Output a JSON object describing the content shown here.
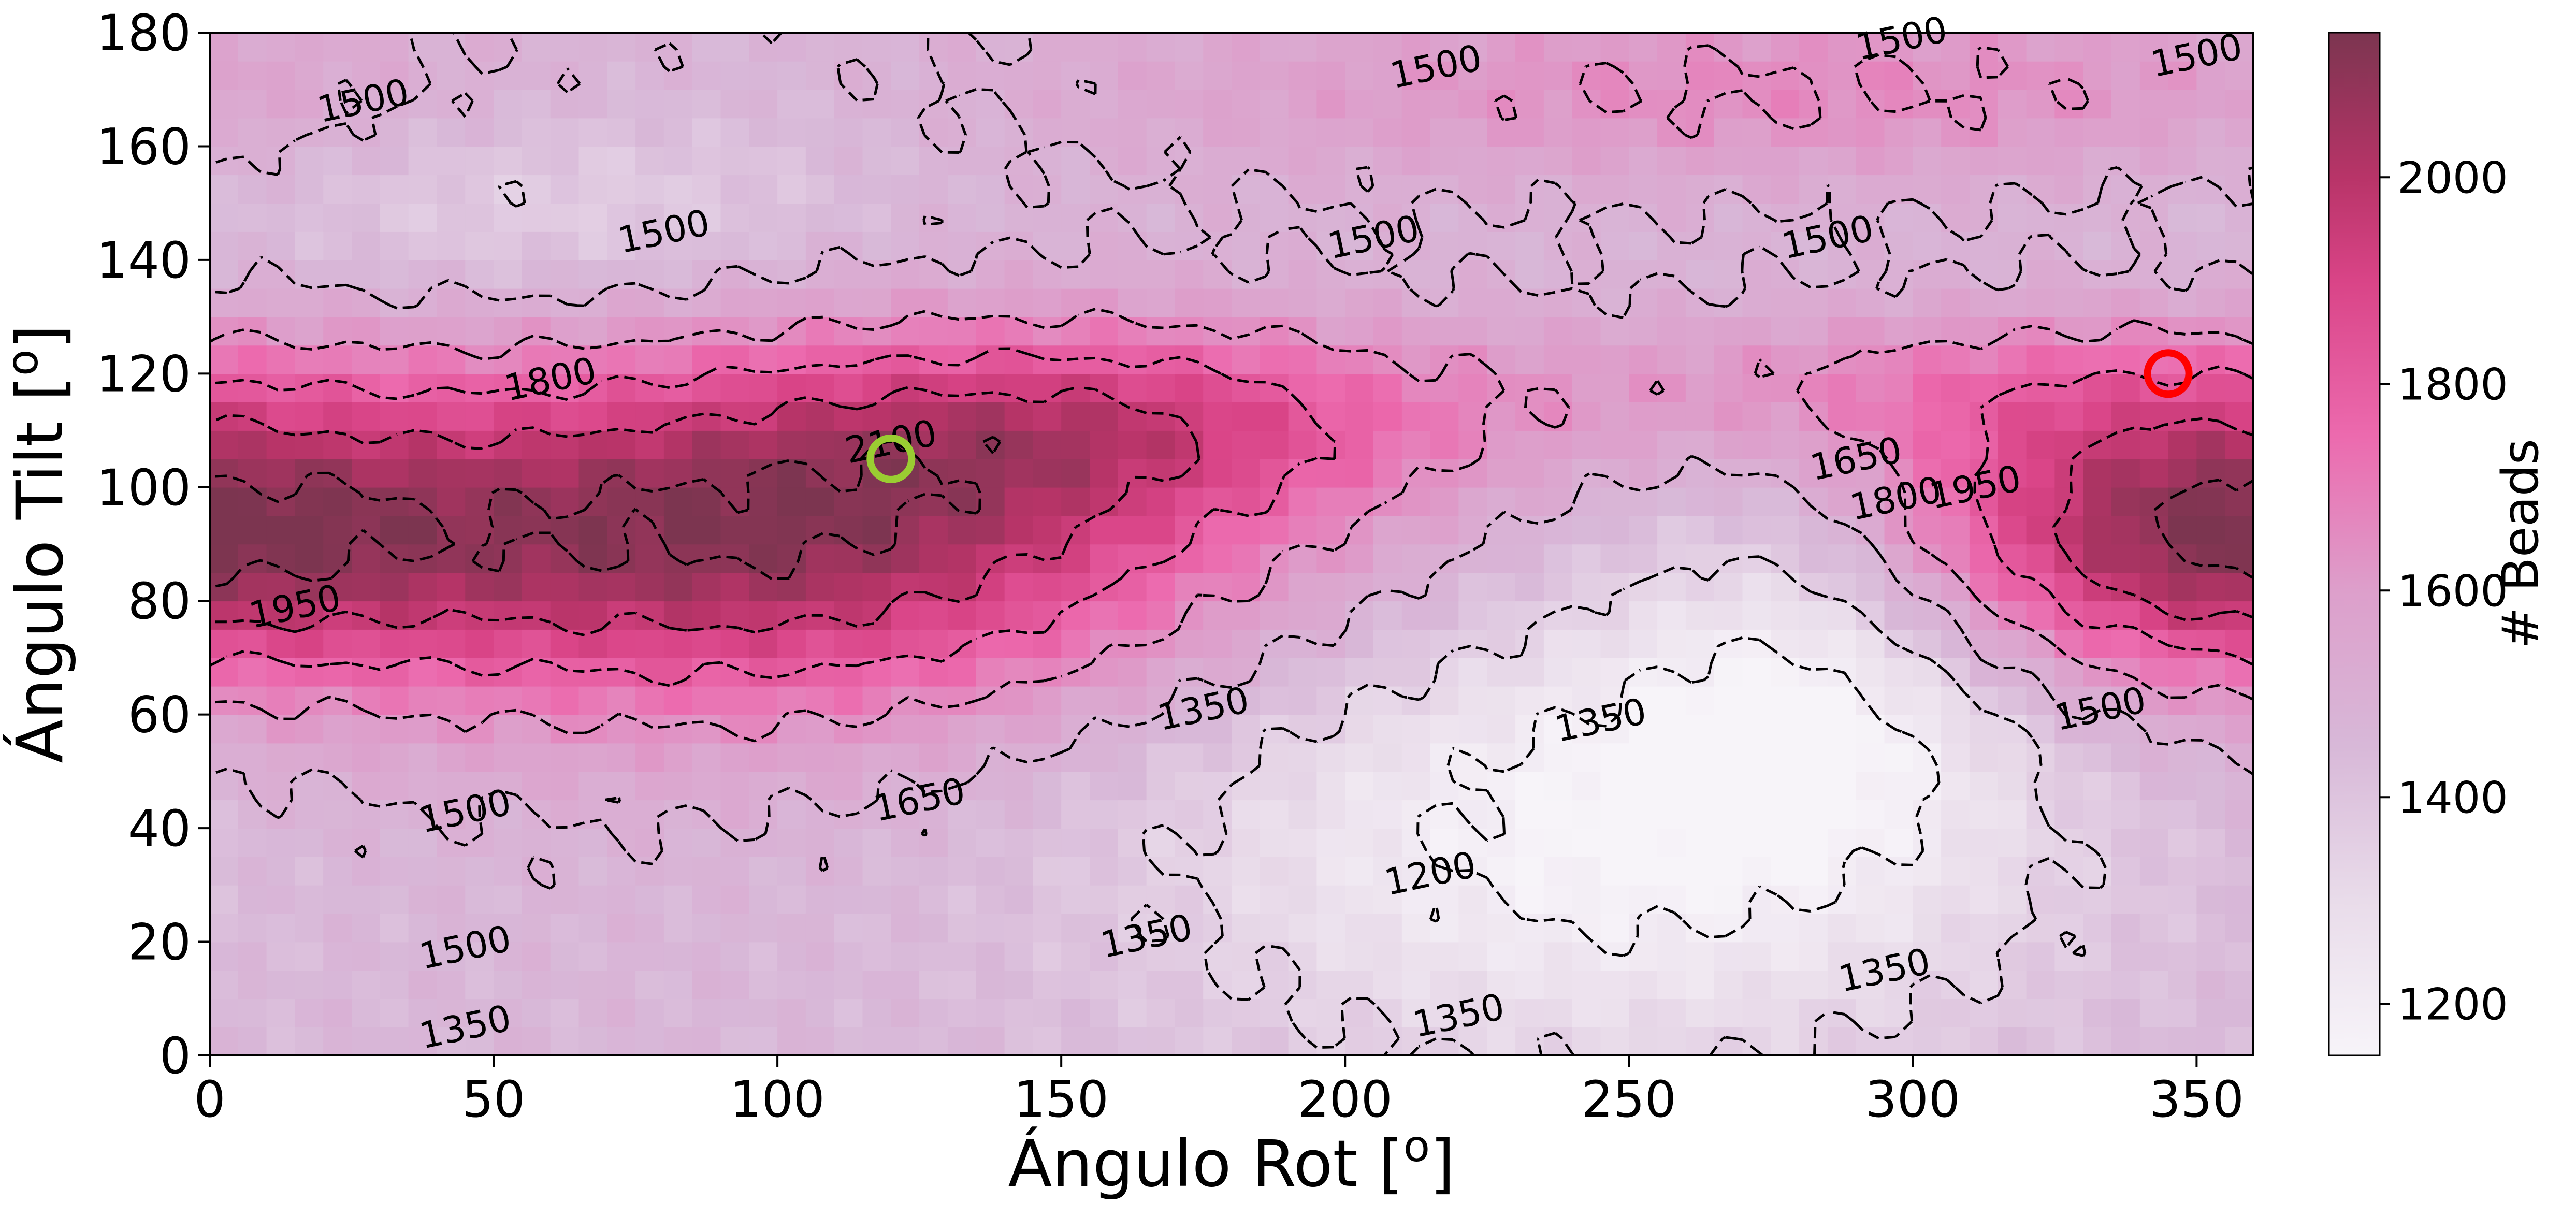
{
  "chart_data": {
    "type": "heatmap",
    "title": "",
    "xlabel": "Ángulo Rot [",
    "ylabel": "Ángulo Tilt [",
    "label_superscript": "o",
    "xlim": [
      0,
      360
    ],
    "ylim": [
      0,
      180
    ],
    "x_ticks": [
      0,
      50,
      100,
      150,
      200,
      250,
      300,
      350
    ],
    "y_ticks": [
      0,
      20,
      40,
      60,
      80,
      100,
      120,
      140,
      160,
      180
    ],
    "grid": false,
    "colorbar": {
      "label": "# Beads",
      "range": [
        1150,
        2140
      ],
      "ticks": [
        1200,
        1400,
        1600,
        1800,
        2000
      ],
      "colormap": [
        {
          "value": 1150,
          "color": "#f7f4f9"
        },
        {
          "value": 1300,
          "color": "#e9dcea"
        },
        {
          "value": 1450,
          "color": "#d8b8d8"
        },
        {
          "value": 1600,
          "color": "#dd9fcb"
        },
        {
          "value": 1750,
          "color": "#ec6aae"
        },
        {
          "value": 1900,
          "color": "#d94487"
        },
        {
          "value": 2000,
          "color": "#b83468"
        },
        {
          "value": 2140,
          "color": "#7c3550"
        }
      ]
    },
    "field_description_levels": {
      "base": 1450,
      "peaks": [
        {
          "rot": 95,
          "tilt": 92,
          "value": 2120
        },
        {
          "rot": 340,
          "tilt": 92,
          "value": 2050
        }
      ],
      "valleys": [
        {
          "rot": 240,
          "tilt": 20,
          "value": 1180
        },
        {
          "rot": 290,
          "tilt": 60,
          "value": 1220
        }
      ]
    },
    "contour_labels": [
      {
        "text": "1500",
        "x": 27,
        "y": 168
      },
      {
        "text": "1500",
        "x": 80,
        "y": 145
      },
      {
        "text": "1500",
        "x": 216,
        "y": 174
      },
      {
        "text": "1500",
        "x": 205,
        "y": 144
      },
      {
        "text": "1500",
        "x": 298,
        "y": 179
      },
      {
        "text": "1500",
        "x": 285,
        "y": 144
      },
      {
        "text": "1500",
        "x": 350,
        "y": 176
      },
      {
        "text": "1800",
        "x": 60,
        "y": 119
      },
      {
        "text": "2100",
        "x": 120,
        "y": 108
      },
      {
        "text": "1950",
        "x": 15,
        "y": 79
      },
      {
        "text": "1650",
        "x": 290,
        "y": 105
      },
      {
        "text": "1800",
        "x": 297,
        "y": 98
      },
      {
        "text": "1950",
        "x": 311,
        "y": 100
      },
      {
        "text": "1350",
        "x": 175,
        "y": 61
      },
      {
        "text": "1350",
        "x": 245,
        "y": 59
      },
      {
        "text": "1650",
        "x": 125,
        "y": 45
      },
      {
        "text": "1500",
        "x": 333,
        "y": 61
      },
      {
        "text": "1500",
        "x": 45,
        "y": 43
      },
      {
        "text": "1500",
        "x": 45,
        "y": 19
      },
      {
        "text": "1200",
        "x": 215,
        "y": 32
      },
      {
        "text": "1350",
        "x": 165,
        "y": 21
      },
      {
        "text": "1350",
        "x": 295,
        "y": 15
      },
      {
        "text": "1350",
        "x": 45,
        "y": 5
      },
      {
        "text": "1350",
        "x": 220,
        "y": 7
      }
    ],
    "markers": [
      {
        "name": "green circle",
        "rot": 120,
        "tilt": 105,
        "color": "#9acd32"
      },
      {
        "name": "red circle",
        "rot": 345,
        "tilt": 120,
        "color": "#ff0000"
      }
    ]
  }
}
